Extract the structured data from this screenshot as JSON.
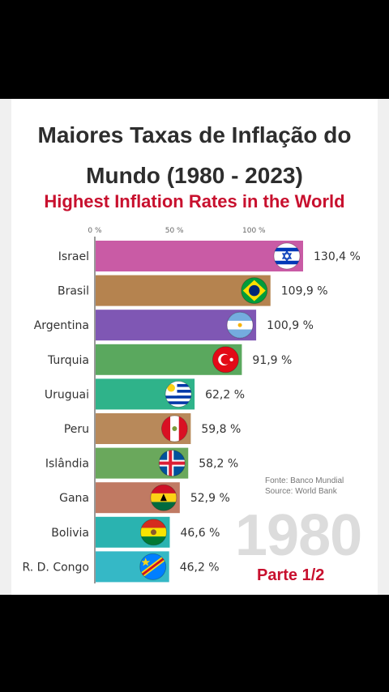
{
  "header": {
    "title_line1": "Maiores Taxas de Inflação do",
    "title_line2": "Mundo (1980 - 2023)",
    "subtitle": "Highest Inflation Rates in the World"
  },
  "footer": {
    "source_pt": "Fonte: Banco Mundial",
    "source_en": "Source: World Bank",
    "year": "1980",
    "part": "Parte 1/2"
  },
  "colors": {
    "subtitle": "#c8102e",
    "title": "#2d2d2d"
  },
  "chart_data": {
    "type": "bar",
    "orientation": "horizontal",
    "title": "Highest Inflation Rates in the World",
    "xlim": [
      0,
      130.4
    ],
    "x_ticks": [
      "0 %",
      "50 %",
      "100 %"
    ],
    "x_tick_values": [
      0,
      50,
      100
    ],
    "categories": [
      "Israel",
      "Brasil",
      "Argentina",
      "Turquia",
      "Uruguai",
      "Peru",
      "Islândia",
      "Gana",
      "Bolivia",
      "R. D. Congo"
    ],
    "values": [
      130.4,
      109.9,
      100.9,
      91.9,
      62.2,
      59.8,
      58.2,
      52.9,
      46.6,
      46.2
    ],
    "value_labels": [
      "130,4 %",
      "109,9 %",
      "100,9 %",
      "91,9 %",
      "62,2 %",
      "59,8 %",
      "58,2 %",
      "52,9 %",
      "46,6 %",
      "46,2 %"
    ],
    "bar_colors": [
      "#c95ba5",
      "#b5834f",
      "#7f57b4",
      "#5aa85e",
      "#2fb38a",
      "#b8895a",
      "#6aa85c",
      "#c07a63",
      "#2ab3b0",
      "#35b8c6"
    ],
    "flags": [
      "israel-flag-icon",
      "brazil-flag-icon",
      "argentina-flag-icon",
      "turkey-flag-icon",
      "uruguay-flag-icon",
      "peru-flag-icon",
      "iceland-flag-icon",
      "ghana-flag-icon",
      "bolivia-flag-icon",
      "dr-congo-flag-icon"
    ]
  }
}
